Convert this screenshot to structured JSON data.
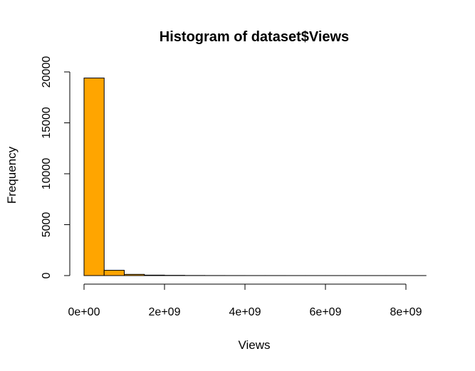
{
  "chart_data": {
    "type": "bar",
    "title": "Histogram of dataset$Views",
    "xlabel": "Views",
    "ylabel": "Frequency",
    "bar_color": "#FFA500",
    "bin_edges": [
      0,
      500000000,
      1000000000,
      1500000000,
      2000000000,
      2500000000,
      3000000000,
      3500000000,
      4000000000,
      4500000000,
      5000000000,
      5500000000,
      6000000000,
      6500000000,
      7000000000,
      7500000000,
      8000000000,
      8500000000
    ],
    "counts": [
      19400,
      520,
      120,
      45,
      25,
      10,
      5,
      3,
      2,
      2,
      1,
      1,
      1,
      1,
      1,
      1,
      1
    ],
    "x_ticks": [
      0,
      2000000000,
      4000000000,
      6000000000,
      8000000000
    ],
    "x_tick_labels": [
      "0e+00",
      "2e+09",
      "4e+09",
      "6e+09",
      "8e+09"
    ],
    "y_ticks": [
      0,
      5000,
      10000,
      15000,
      20000
    ],
    "y_tick_labels": [
      "0",
      "5000",
      "10000",
      "15000",
      "20000"
    ],
    "xlim": [
      0,
      8500000000
    ],
    "ylim": [
      0,
      20000
    ],
    "grid": false,
    "legend": "none"
  }
}
